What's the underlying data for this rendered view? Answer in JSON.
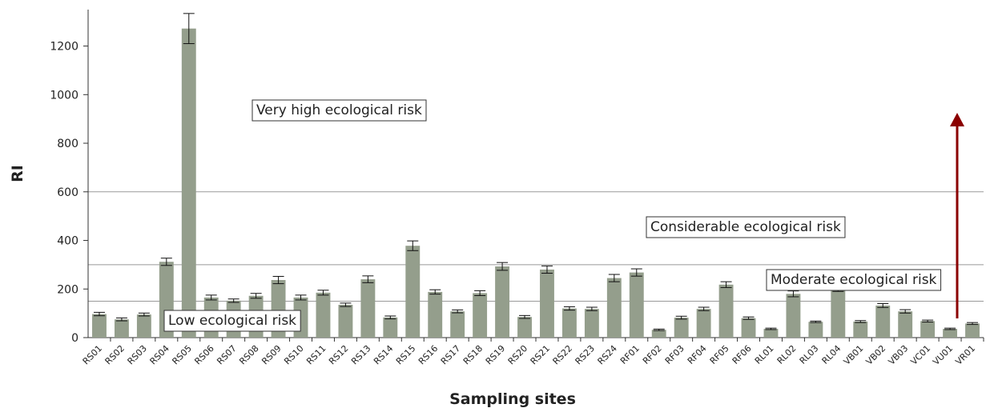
{
  "chart_data": {
    "type": "bar",
    "x_label": "Sampling sites",
    "y_label": "RI",
    "categories": [
      "RS01",
      "RS02",
      "RS03",
      "RS04",
      "RS05",
      "RS06",
      "RS07",
      "RS08",
      "RS09",
      "RS10",
      "RS11",
      "RS12",
      "RS13",
      "RS14",
      "RS15",
      "RS16",
      "RS17",
      "RS18",
      "RS19",
      "RS20",
      "RS21",
      "RS22",
      "RS23",
      "RS24",
      "RF01",
      "RF02",
      "RF03",
      "RF04",
      "RF05",
      "RF06",
      "RL01",
      "RL02",
      "RL03",
      "RL04",
      "VB01",
      "VB02",
      "VB03",
      "VC01",
      "VU01",
      "VR01"
    ],
    "values": [
      97,
      75,
      95,
      312,
      1272,
      165,
      152,
      172,
      237,
      165,
      185,
      135,
      240,
      83,
      378,
      188,
      108,
      183,
      293,
      85,
      280,
      120,
      118,
      245,
      268,
      32,
      82,
      118,
      218,
      80,
      36,
      180,
      65,
      198,
      66,
      132,
      108,
      68,
      36,
      58
    ],
    "errors": [
      7,
      6,
      6,
      15,
      62,
      10,
      7,
      10,
      15,
      10,
      10,
      7,
      14,
      6,
      20,
      9,
      6,
      10,
      16,
      6,
      15,
      7,
      7,
      15,
      15,
      3,
      6,
      7,
      12,
      5,
      3,
      12,
      3,
      8,
      4,
      8,
      7,
      4,
      3,
      4
    ],
    "color": "#949e8c",
    "ylim": [
      0,
      1350
    ],
    "yticks": [
      0,
      200,
      400,
      600,
      800,
      1000,
      1200
    ],
    "reference_lines": [
      150,
      300,
      600
    ],
    "annotations": [
      "Very high ecological risk",
      "Considerable ecological risk",
      "Moderate ecological risk",
      "Low ecological risk"
    ]
  }
}
